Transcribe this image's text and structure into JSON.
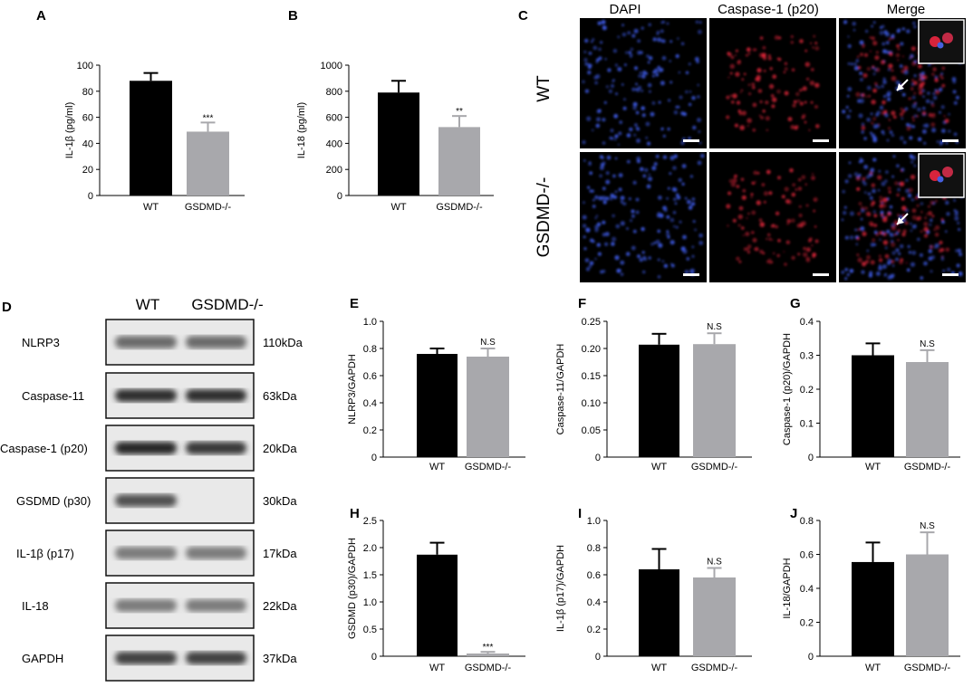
{
  "colors": {
    "wt": "#000000",
    "ko": "#a8a8ac"
  },
  "chart_data": [
    {
      "panel": "A",
      "type": "bar",
      "categories": [
        "WT",
        "GSDMD-/-"
      ],
      "values": [
        88,
        49
      ],
      "errors": [
        6,
        7
      ],
      "sig": [
        "",
        "***"
      ],
      "ylabel": "IL-1β (pg/ml)",
      "ylim": [
        0,
        100
      ],
      "ticks": [
        0,
        20,
        40,
        60,
        80,
        100
      ]
    },
    {
      "panel": "B",
      "type": "bar",
      "categories": [
        "WT",
        "GSDMD-/-"
      ],
      "values": [
        790,
        525
      ],
      "errors": [
        90,
        85
      ],
      "sig": [
        "",
        "**"
      ],
      "ylabel": "IL-18 (pg/ml)",
      "ylim": [
        0,
        1000
      ],
      "ticks": [
        0,
        200,
        400,
        600,
        800,
        1000
      ]
    },
    {
      "panel": "E",
      "type": "bar",
      "categories": [
        "WT",
        "GSDMD-/-"
      ],
      "values": [
        0.76,
        0.74
      ],
      "errors": [
        0.04,
        0.06
      ],
      "sig": [
        "",
        "N.S"
      ],
      "ylabel": "NLRP3/GAPDH",
      "ylim": [
        0,
        1.0
      ],
      "ticks": [
        "0",
        "0.2",
        "0.4",
        "0.6",
        "0.8",
        "1.0"
      ]
    },
    {
      "panel": "F",
      "type": "bar",
      "categories": [
        "WT",
        "GSDMD-/-"
      ],
      "values": [
        0.207,
        0.208
      ],
      "errors": [
        0.02,
        0.02
      ],
      "sig": [
        "",
        "N.S"
      ],
      "ylabel": "Caspase-11/GAPDH",
      "ylim": [
        0,
        0.25
      ],
      "ticks": [
        "0",
        "0.05",
        "0.10",
        "0.15",
        "0.20",
        "0.25"
      ]
    },
    {
      "panel": "G",
      "type": "bar",
      "categories": [
        "WT",
        "GSDMD-/-"
      ],
      "values": [
        0.3,
        0.28
      ],
      "errors": [
        0.035,
        0.035
      ],
      "sig": [
        "",
        "N.S"
      ],
      "ylabel": "Caspase-1 (p20)/GAPDH",
      "ylim": [
        0,
        0.4
      ],
      "ticks": [
        "0",
        "0.1",
        "0.2",
        "0.3",
        "0.4"
      ]
    },
    {
      "panel": "H",
      "type": "bar",
      "categories": [
        "WT",
        "GSDMD-/-"
      ],
      "values": [
        1.87,
        0.05
      ],
      "errors": [
        0.22,
        0.03
      ],
      "sig": [
        "",
        "***"
      ],
      "ylabel": "GSDMD (p30)/GAPDH",
      "ylim": [
        0,
        2.5
      ],
      "ticks": [
        "0",
        "0.5",
        "1.0",
        "1.5",
        "2.0",
        "2.5"
      ]
    },
    {
      "panel": "I",
      "type": "bar",
      "categories": [
        "WT",
        "GSDMD-/-"
      ],
      "values": [
        0.64,
        0.58
      ],
      "errors": [
        0.15,
        0.07
      ],
      "sig": [
        "",
        "N.S"
      ],
      "ylabel": "IL-1β (p17)/GAPDH",
      "ylim": [
        0,
        1.0
      ],
      "ticks": [
        "0",
        "0.2",
        "0.4",
        "0.6",
        "0.8",
        "1.0"
      ]
    },
    {
      "panel": "J",
      "type": "bar",
      "categories": [
        "WT",
        "GSDMD-/-"
      ],
      "values": [
        0.555,
        0.6
      ],
      "errors": [
        0.115,
        0.13
      ],
      "sig": [
        "",
        "N.S"
      ],
      "ylabel": "IL-18/GAPDH",
      "ylim": [
        0,
        0.8
      ],
      "ticks": [
        "0",
        "0.2",
        "0.4",
        "0.6",
        "0.8"
      ]
    }
  ],
  "panel_c": {
    "letter": "C",
    "headers": [
      "DAPI",
      "Caspase-1 (p20)",
      "Merge"
    ],
    "rows": [
      "WT",
      "GSDMD-/-"
    ]
  },
  "panel_d": {
    "letter": "D",
    "col_headers": [
      "WT",
      "GSDMD-/-"
    ],
    "blots": [
      {
        "label": "NLRP3",
        "size": "110kDa",
        "wt": 0.55,
        "ko": 0.55
      },
      {
        "label": "Caspase-11",
        "size": "63kDa",
        "wt": 0.9,
        "ko": 0.9
      },
      {
        "label": "Caspase-1 (p20)",
        "size": "20kDa",
        "wt": 0.95,
        "ko": 0.85
      },
      {
        "label": "GSDMD (p30)",
        "size": "30kDa",
        "wt": 0.7,
        "ko": 0.0
      },
      {
        "label": "IL-1β (p17)",
        "size": "17kDa",
        "wt": 0.45,
        "ko": 0.45
      },
      {
        "label": "IL-18",
        "size": "22kDa",
        "wt": 0.45,
        "ko": 0.45
      },
      {
        "label": "GAPDH",
        "size": "37kDa",
        "wt": 0.8,
        "ko": 0.8
      }
    ]
  }
}
